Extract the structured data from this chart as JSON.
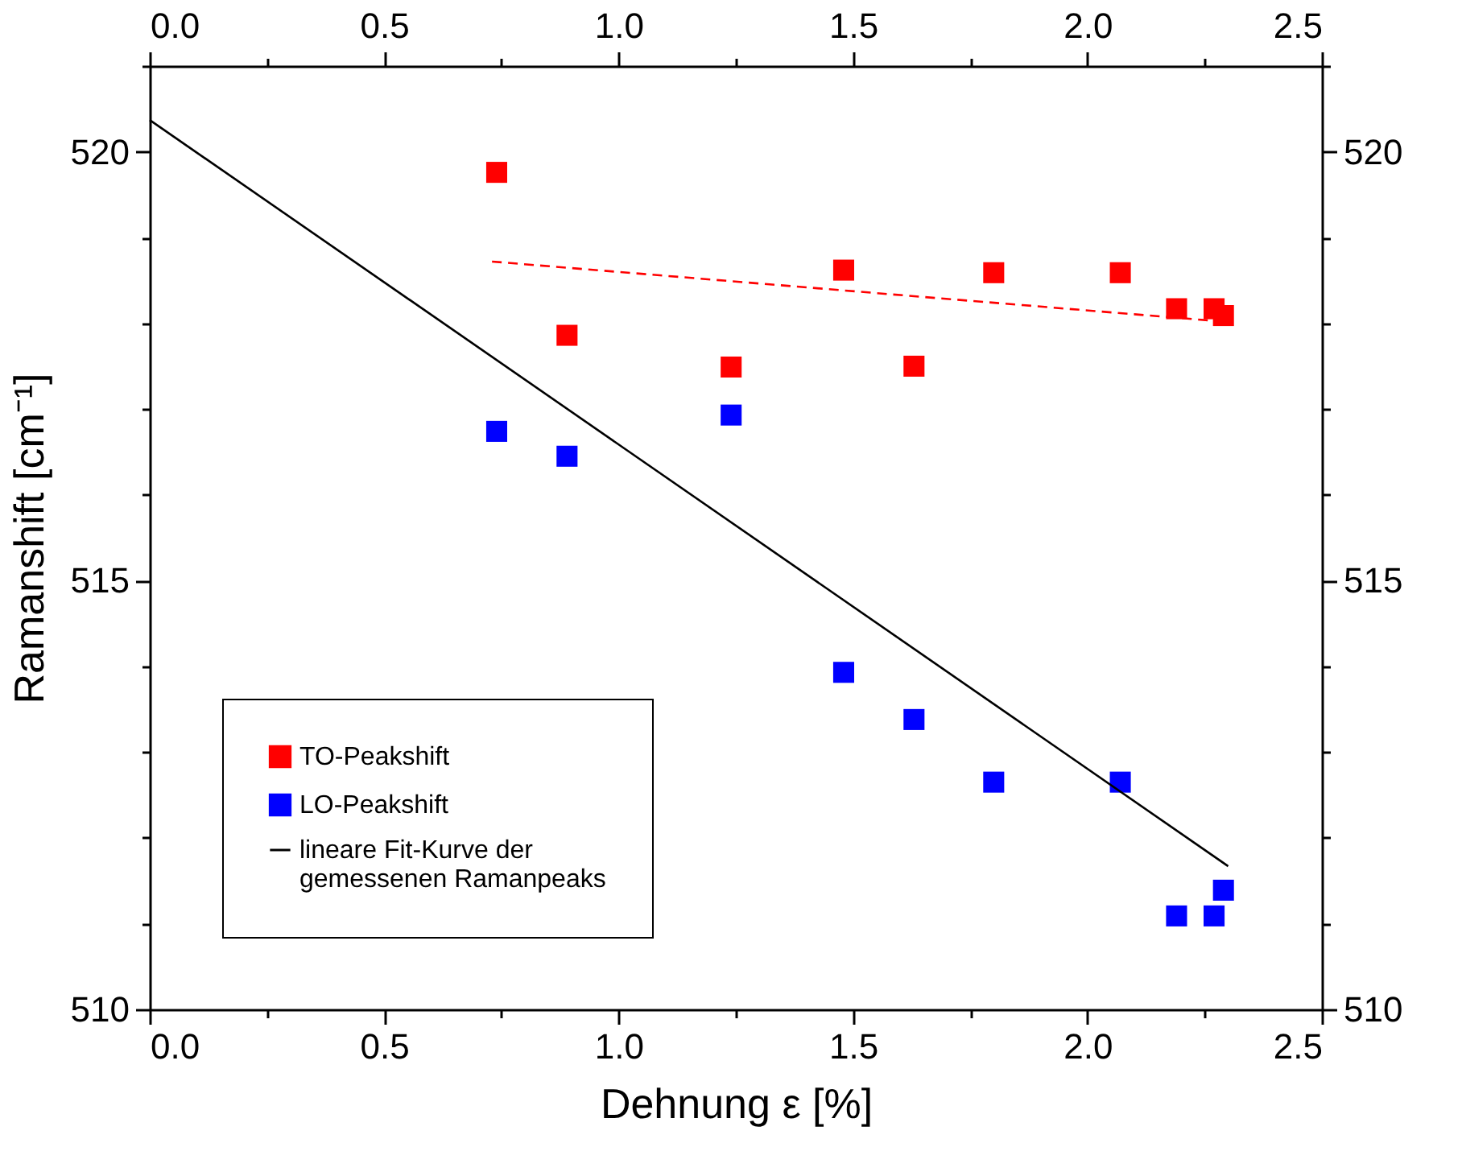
{
  "chart_data": {
    "type": "scatter",
    "xlabel": "Dehnung ε [%]",
    "ylabel": "Ramanshift [cm⁻¹]",
    "xlim": [
      0,
      2.5
    ],
    "ylim": [
      510,
      521
    ],
    "x2lim": [
      0,
      2.5
    ],
    "y2lim": [
      510,
      521
    ],
    "xticks": [
      {
        "value": 0,
        "label": "0.0"
      },
      {
        "value": 0.25,
        "label": null
      },
      {
        "value": 0.5,
        "label": "0.5"
      },
      {
        "value": 0.75,
        "label": null
      },
      {
        "value": 1,
        "label": "1.0"
      },
      {
        "value": 1.25,
        "label": null
      },
      {
        "value": 1.5,
        "label": "1.5"
      },
      {
        "value": 1.75,
        "label": null
      },
      {
        "value": 2,
        "label": "2.0"
      },
      {
        "value": 2.25,
        "label": null
      },
      {
        "value": 2.5,
        "label": "2.5"
      }
    ],
    "x2ticks": [
      {
        "value": 0,
        "label": "0.0"
      },
      {
        "value": 0.25,
        "label": null
      },
      {
        "value": 0.5,
        "label": "0.5"
      },
      {
        "value": 0.75,
        "label": null
      },
      {
        "value": 1,
        "label": "1.0"
      },
      {
        "value": 1.25,
        "label": null
      },
      {
        "value": 1.5,
        "label": "1.5"
      },
      {
        "value": 1.75,
        "label": null
      },
      {
        "value": 2,
        "label": "2.0"
      },
      {
        "value": 2.25,
        "label": null
      },
      {
        "value": 2.5,
        "label": "2.5"
      }
    ],
    "yticks": [
      510,
      {
        "value": 511,
        "label": null
      },
      {
        "value": 512,
        "label": null
      },
      {
        "value": 513,
        "label": null
      },
      {
        "value": 514,
        "label": null
      },
      515,
      {
        "value": 516,
        "label": null
      },
      {
        "value": 517,
        "label": null
      },
      {
        "value": 518,
        "label": null
      },
      {
        "value": 519,
        "label": null
      },
      520,
      {
        "value": 521,
        "label": null
      }
    ],
    "y2ticks": [
      510,
      {
        "value": 511,
        "label": null
      },
      {
        "value": 512,
        "label": null
      },
      {
        "value": 513,
        "label": null
      },
      {
        "value": 514,
        "label": null
      },
      515,
      {
        "value": 516,
        "label": null
      },
      {
        "value": 517,
        "label": null
      },
      {
        "value": 518,
        "label": null
      },
      {
        "value": 519,
        "label": null
      },
      520,
      {
        "value": 521,
        "label": null
      }
    ],
    "grid": false,
    "legend": "bottom left",
    "series": [
      {
        "name": "TO-Peakshift",
        "marker": "square",
        "color": "#ff0000",
        "x": [
          0.74,
          0.89,
          1.24,
          1.48,
          1.63,
          1.8,
          2.07,
          2.19,
          2.27,
          2.29
        ],
        "values": [
          519.76,
          517.86,
          517.49,
          518.62,
          517.5,
          518.59,
          518.59,
          518.17,
          518.17,
          518.09
        ]
      },
      {
        "name": "LO-Peakshift",
        "marker": "square",
        "color": "#0000ff",
        "x": [
          0.74,
          0.89,
          1.24,
          1.48,
          1.63,
          1.8,
          2.07,
          2.19,
          2.27,
          2.29
        ],
        "values": [
          516.74,
          516.45,
          516.93,
          513.93,
          513.38,
          512.65,
          512.65,
          511.09,
          511.09,
          511.39
        ]
      },
      {
        "name": "lineare Fit-Kurve der\ngemessenen Ramanpeaks",
        "type": "line",
        "line_style": "solid",
        "color": "#000000",
        "x": [
          0,
          2.3
        ],
        "values": [
          520.37,
          511.67
        ]
      },
      {
        "type": "line",
        "line_style": "dashed",
        "color": "#ff0000",
        "x": [
          0.73,
          2.29
        ],
        "values": [
          518.72,
          518.02
        ]
      }
    ]
  }
}
